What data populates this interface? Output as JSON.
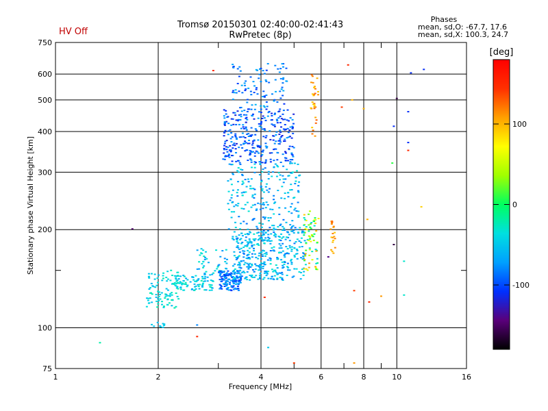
{
  "header": {
    "title_line1": "Tromsø 20150301 02:40:00-02:41:43",
    "title_line2": "RwPretec (8p)",
    "status": "HV Off",
    "phases_heading": "Phases",
    "phases_o": "mean, sd,O: -67.7, 17.6",
    "phases_x": "mean, sd,X: 100.3, 24.7"
  },
  "colorbar": {
    "unit": "[deg]",
    "ticks": [
      {
        "value": 100,
        "label": "100"
      },
      {
        "value": 0,
        "label": "0"
      },
      {
        "value": -100,
        "label": "-100"
      }
    ],
    "range": [
      -180,
      180
    ],
    "colors": [
      "#000000",
      "#5a007a",
      "#0030ff",
      "#00a0ff",
      "#00e0e0",
      "#00ff60",
      "#a0ff00",
      "#ffff00",
      "#ffa000",
      "#ff3000",
      "#ff0000"
    ]
  },
  "chart_data": {
    "type": "scatter",
    "title": "Tromsø 20150301 02:40:00-02:41:43",
    "subtitle": "RwPretec (8p)",
    "xlabel": "Frequency [MHz]",
    "ylabel": "Stationary phase Virtual Height [km]",
    "x_scale": "log",
    "y_scale": "log",
    "xlim": [
      1,
      16
    ],
    "ylim": [
      75,
      750
    ],
    "grid": true,
    "x_ticks": [
      {
        "value": 1,
        "label": "1"
      },
      {
        "value": 2,
        "label": "2"
      },
      {
        "value": 4,
        "label": "4"
      },
      {
        "value": 6,
        "label": "6"
      },
      {
        "value": 8,
        "label": "8"
      },
      {
        "value": 10,
        "label": "10"
      },
      {
        "value": 16,
        "label": "16"
      }
    ],
    "x_minor": [
      3,
      5,
      7,
      9
    ],
    "y_ticks": [
      {
        "value": 75,
        "label": "75"
      },
      {
        "value": 100,
        "label": "100"
      },
      {
        "value": 200,
        "label": "200"
      },
      {
        "value": 300,
        "label": "300"
      },
      {
        "value": 400,
        "label": "400"
      },
      {
        "value": 500,
        "label": "500"
      },
      {
        "value": 600,
        "label": "600"
      },
      {
        "value": 750,
        "label": "750"
      }
    ],
    "y_minor": [
      150
    ],
    "clusters": [
      {
        "f": [
          1.9,
          2.1
        ],
        "h": [
          100,
          104
        ],
        "phase": [
          -60,
          -40
        ],
        "n": 10
      },
      {
        "f": [
          1.85,
          2.3
        ],
        "h": [
          115,
          150
        ],
        "phase": [
          -60,
          -20
        ],
        "n": 90
      },
      {
        "f": [
          2.2,
          2.9
        ],
        "h": [
          130,
          145
        ],
        "phase": [
          -70,
          -20
        ],
        "n": 90
      },
      {
        "f": [
          2.6,
          3.2
        ],
        "h": [
          145,
          175
        ],
        "phase": [
          -80,
          -20
        ],
        "n": 50
      },
      {
        "f": [
          3.0,
          3.5
        ],
        "h": [
          130,
          150
        ],
        "phase": [
          -110,
          -60
        ],
        "n": 130
      },
      {
        "f": [
          3.3,
          5.4
        ],
        "h": [
          140,
          200
        ],
        "phase": [
          -90,
          -30
        ],
        "n": 380
      },
      {
        "f": [
          3.2,
          5.2
        ],
        "h": [
          200,
          320
        ],
        "phase": [
          -90,
          -30
        ],
        "n": 220
      },
      {
        "f": [
          3.1,
          5.0
        ],
        "h": [
          320,
          470
        ],
        "phase": [
          -120,
          -70
        ],
        "n": 320
      },
      {
        "f": [
          3.3,
          4.8
        ],
        "h": [
          470,
          650
        ],
        "phase": [
          -110,
          -60
        ],
        "n": 90
      },
      {
        "f": [
          5.3,
          5.9
        ],
        "h": [
          150,
          230
        ],
        "phase": [
          -50,
          110
        ],
        "n": 70
      },
      {
        "f": [
          5.6,
          5.9
        ],
        "h": [
          380,
          600
        ],
        "phase": [
          80,
          130
        ],
        "n": 30
      },
      {
        "f": [
          6.4,
          6.6
        ],
        "h": [
          160,
          215
        ],
        "phase": [
          90,
          130
        ],
        "n": 20
      }
    ],
    "points": [
      {
        "f": 1.35,
        "h": 90,
        "phase": -20
      },
      {
        "f": 1.68,
        "h": 201,
        "phase": -150
      },
      {
        "f": 2.6,
        "h": 102,
        "phase": -80
      },
      {
        "f": 2.6,
        "h": 94,
        "phase": 150
      },
      {
        "f": 2.9,
        "h": 615,
        "phase": 150
      },
      {
        "f": 4.1,
        "h": 124,
        "phase": 150
      },
      {
        "f": 4.2,
        "h": 87,
        "phase": -50
      },
      {
        "f": 5.0,
        "h": 78,
        "phase": 140
      },
      {
        "f": 6.3,
        "h": 165,
        "phase": -140
      },
      {
        "f": 6.9,
        "h": 475,
        "phase": 140
      },
      {
        "f": 7.2,
        "h": 640,
        "phase": 150
      },
      {
        "f": 7.4,
        "h": 500,
        "phase": 100
      },
      {
        "f": 7.5,
        "h": 78,
        "phase": 110
      },
      {
        "f": 7.5,
        "h": 130,
        "phase": 140
      },
      {
        "f": 8.0,
        "h": 470,
        "phase": 100
      },
      {
        "f": 8.2,
        "h": 215,
        "phase": 100
      },
      {
        "f": 8.3,
        "h": 120,
        "phase": 150
      },
      {
        "f": 9.0,
        "h": 125,
        "phase": 110
      },
      {
        "f": 9.8,
        "h": 180,
        "phase": -160
      },
      {
        "f": 9.8,
        "h": 415,
        "phase": -110
      },
      {
        "f": 9.7,
        "h": 320,
        "phase": 10
      },
      {
        "f": 10.0,
        "h": 505,
        "phase": -160
      },
      {
        "f": 10.5,
        "h": 160,
        "phase": -30
      },
      {
        "f": 10.5,
        "h": 126,
        "phase": -30
      },
      {
        "f": 10.8,
        "h": 370,
        "phase": -110
      },
      {
        "f": 10.8,
        "h": 460,
        "phase": -110
      },
      {
        "f": 10.8,
        "h": 350,
        "phase": 150
      },
      {
        "f": 11.0,
        "h": 605,
        "phase": -110
      },
      {
        "f": 11.8,
        "h": 235,
        "phase": 90
      },
      {
        "f": 12.0,
        "h": 620,
        "phase": -110
      }
    ]
  }
}
